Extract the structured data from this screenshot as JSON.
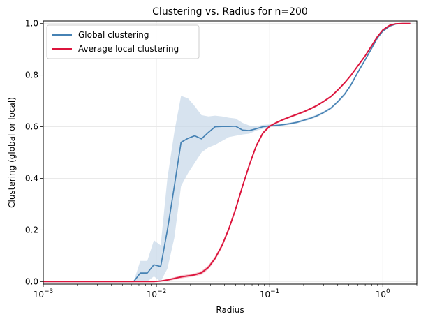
{
  "chart_data": {
    "type": "line",
    "title": "Clustering vs. Radius for n=200",
    "xlabel": "Radius",
    "ylabel": "Clustering (global or local)",
    "xscale": "log",
    "xlim": [
      0.001,
      2.0
    ],
    "ylim": [
      -0.01,
      1.01
    ],
    "x_ticks": [
      0.001,
      0.01,
      0.1,
      1
    ],
    "x_tick_labels": [
      "10^-3",
      "10^-2",
      "10^-1",
      "10^0"
    ],
    "y_ticks": [
      0.0,
      0.2,
      0.4,
      0.6,
      0.8,
      1.0
    ],
    "y_tick_labels": [
      "0.0",
      "0.2",
      "0.4",
      "0.6",
      "0.8",
      "1.0"
    ],
    "grid": true,
    "legend_position": "upper-left",
    "series": [
      {
        "name": "Global clustering",
        "color": "#4682b4",
        "band_color": "#c6d7e8",
        "x": [
          0.001,
          0.0063,
          0.0072,
          0.0083,
          0.0095,
          0.0109,
          0.0125,
          0.0144,
          0.0165,
          0.019,
          0.0218,
          0.025,
          0.0288,
          0.033,
          0.038,
          0.0437,
          0.05,
          0.0577,
          0.066,
          0.076,
          0.087,
          0.1,
          0.115,
          0.132,
          0.151,
          0.174,
          0.2,
          0.23,
          0.264,
          0.3,
          0.35,
          0.4,
          0.46,
          0.525,
          0.6,
          0.7,
          0.8,
          0.9,
          1.0,
          1.15,
          1.3,
          1.5,
          1.75
        ],
        "values": [
          0.0,
          0.0,
          0.033,
          0.033,
          0.065,
          0.058,
          0.2,
          0.37,
          0.54,
          0.555,
          0.565,
          0.553,
          0.578,
          0.6,
          0.601,
          0.601,
          0.602,
          0.587,
          0.585,
          0.592,
          0.6,
          0.603,
          0.605,
          0.608,
          0.612,
          0.617,
          0.625,
          0.633,
          0.643,
          0.655,
          0.673,
          0.697,
          0.726,
          0.763,
          0.81,
          0.86,
          0.905,
          0.945,
          0.97,
          0.99,
          0.998,
          1.0,
          1.0
        ],
        "lower": [
          0.0,
          0.0,
          0.0,
          0.0,
          0.02,
          0.0,
          0.05,
          0.17,
          0.37,
          0.42,
          0.46,
          0.5,
          0.52,
          0.53,
          0.545,
          0.56,
          0.565,
          0.57,
          0.573,
          0.585,
          0.592,
          0.598,
          0.601,
          0.604,
          0.608,
          0.613,
          0.62,
          0.629,
          0.638,
          0.65,
          0.668,
          0.692,
          0.72,
          0.757,
          0.805,
          0.855,
          0.9,
          0.941,
          0.967,
          0.988,
          0.997,
          0.999,
          1.0
        ],
        "upper": [
          0.0,
          0.0,
          0.08,
          0.08,
          0.16,
          0.14,
          0.4,
          0.58,
          0.72,
          0.71,
          0.68,
          0.645,
          0.64,
          0.643,
          0.64,
          0.635,
          0.632,
          0.615,
          0.605,
          0.602,
          0.607,
          0.609,
          0.61,
          0.612,
          0.616,
          0.621,
          0.63,
          0.638,
          0.648,
          0.66,
          0.678,
          0.702,
          0.732,
          0.769,
          0.815,
          0.865,
          0.91,
          0.949,
          0.973,
          0.992,
          0.999,
          1.0,
          1.0
        ]
      },
      {
        "name": "Average local clustering",
        "color": "#dc143c",
        "band_color": "#f4b6c2",
        "x": [
          0.001,
          0.0095,
          0.0109,
          0.0125,
          0.0144,
          0.0165,
          0.019,
          0.0218,
          0.025,
          0.0288,
          0.033,
          0.038,
          0.0437,
          0.05,
          0.0577,
          0.066,
          0.076,
          0.087,
          0.1,
          0.115,
          0.132,
          0.151,
          0.174,
          0.2,
          0.23,
          0.264,
          0.3,
          0.35,
          0.4,
          0.46,
          0.525,
          0.6,
          0.7,
          0.8,
          0.9,
          1.0,
          1.15,
          1.3,
          1.5,
          1.75
        ],
        "values": [
          0.0,
          0.0,
          0.002,
          0.006,
          0.012,
          0.018,
          0.022,
          0.026,
          0.034,
          0.055,
          0.09,
          0.14,
          0.205,
          0.28,
          0.37,
          0.45,
          0.525,
          0.575,
          0.602,
          0.616,
          0.628,
          0.638,
          0.648,
          0.658,
          0.67,
          0.683,
          0.698,
          0.718,
          0.742,
          0.77,
          0.8,
          0.835,
          0.875,
          0.915,
          0.95,
          0.975,
          0.993,
          0.999,
          1.0,
          1.0
        ],
        "lower": [
          0.0,
          0.0,
          0.0,
          0.002,
          0.007,
          0.012,
          0.016,
          0.02,
          0.027,
          0.047,
          0.082,
          0.132,
          0.197,
          0.272,
          0.363,
          0.443,
          0.518,
          0.569,
          0.597,
          0.612,
          0.624,
          0.634,
          0.644,
          0.654,
          0.666,
          0.679,
          0.694,
          0.714,
          0.738,
          0.766,
          0.796,
          0.831,
          0.871,
          0.912,
          0.947,
          0.973,
          0.992,
          0.998,
          1.0,
          1.0
        ],
        "upper": [
          0.0,
          0.0,
          0.004,
          0.01,
          0.017,
          0.024,
          0.028,
          0.032,
          0.041,
          0.063,
          0.098,
          0.148,
          0.213,
          0.288,
          0.377,
          0.457,
          0.532,
          0.581,
          0.607,
          0.62,
          0.632,
          0.642,
          0.652,
          0.662,
          0.674,
          0.687,
          0.702,
          0.722,
          0.746,
          0.774,
          0.804,
          0.839,
          0.879,
          0.918,
          0.953,
          0.977,
          0.994,
          1.0,
          1.0,
          1.0
        ]
      }
    ]
  }
}
